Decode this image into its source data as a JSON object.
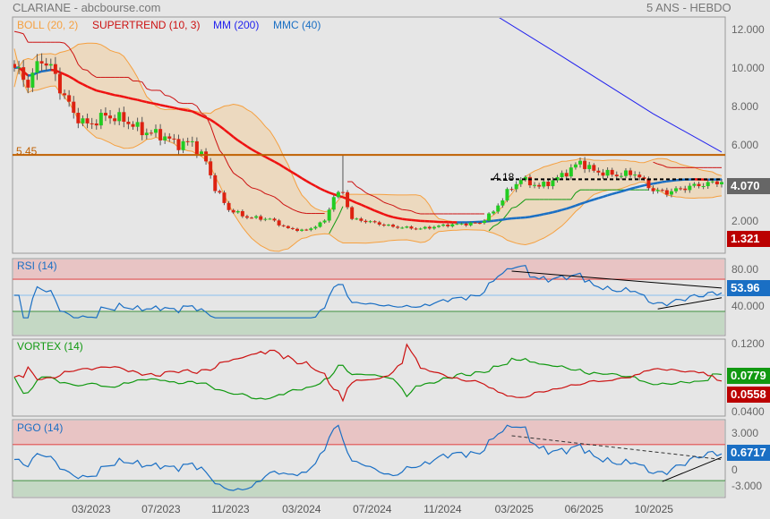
{
  "header": {
    "title": "CLARIANE - abcbourse.com",
    "period": "5 ANS - HEBDO"
  },
  "legend": {
    "boll": "BOLL (20, 2)",
    "supertrend": "SUPERTREND (10, 3)",
    "mm": "MM (200)",
    "mmc": "MMC (40)"
  },
  "colors": {
    "up": "#22cc22",
    "down": "#dd2211",
    "boll": "#f5a040",
    "boll_fill": "#ecd9bf",
    "supertrend_up": "#119911",
    "supertrend_down": "#cc1111",
    "mm": "#2222ee",
    "mmc_up": "#1a6fc4",
    "mmc_down": "#ee1111",
    "level": "#c06000"
  },
  "main": {
    "axis_labels": [
      "12.000",
      "10.000",
      "8.000",
      "6.000",
      "2.000"
    ],
    "level_label": "5.45",
    "dashed_label": "4.18",
    "last_price": "4.070",
    "low_tag": "1.321"
  },
  "rsi": {
    "title": "RSI (14)",
    "axis_labels": [
      "80.00",
      "40.000"
    ],
    "last": "53.96"
  },
  "vortex": {
    "title": "VORTEX (14)",
    "axis_labels": [
      "0.1200",
      "0.0400"
    ],
    "plus_last": "0.0779",
    "minus_last": "0.0558"
  },
  "pgo": {
    "title": "PGO (14)",
    "axis_labels": [
      "3.000",
      "0",
      "-3.000"
    ],
    "last": "0.6717"
  },
  "xaxis": {
    "labels": [
      "03/2023",
      "07/2023",
      "11/2023",
      "03/2024",
      "07/2024",
      "11/2024",
      "03/2025",
      "06/2025",
      "10/2025"
    ]
  },
  "chart_data": {
    "type": "candlestick",
    "title": "CLARIANE - 5 ANS - HEBDO",
    "weeks": 156,
    "price_anchors": [
      [
        0,
        10
      ],
      [
        3,
        9.2
      ],
      [
        6,
        10.5
      ],
      [
        8,
        10
      ],
      [
        10,
        9
      ],
      [
        13,
        7.6
      ],
      [
        16,
        7
      ],
      [
        20,
        7.5
      ],
      [
        24,
        7.3
      ],
      [
        28,
        6.7
      ],
      [
        32,
        6.5
      ],
      [
        36,
        6
      ],
      [
        39,
        6.1
      ],
      [
        42,
        5.1
      ],
      [
        44,
        3.7
      ],
      [
        47,
        2.6
      ],
      [
        51,
        2.2
      ],
      [
        56,
        2.1
      ],
      [
        60,
        1.6
      ],
      [
        64,
        1.5
      ],
      [
        68,
        2
      ],
      [
        70,
        3.3
      ],
      [
        72,
        3.5
      ],
      [
        74,
        2.1
      ],
      [
        77,
        2
      ],
      [
        83,
        1.7
      ],
      [
        89,
        1.6
      ],
      [
        95,
        1.8
      ],
      [
        102,
        1.9
      ],
      [
        105,
        2.5
      ],
      [
        108,
        3.5
      ],
      [
        111,
        4.2
      ],
      [
        115,
        3.8
      ],
      [
        118,
        4.1
      ],
      [
        122,
        4.7
      ],
      [
        124,
        5.1
      ],
      [
        127,
        4.6
      ],
      [
        132,
        4.4
      ],
      [
        136,
        4.5
      ],
      [
        140,
        3.6
      ],
      [
        143,
        3.5
      ],
      [
        148,
        3.8
      ],
      [
        155,
        4.07
      ]
    ],
    "mm200_anchors": [
      [
        101,
        13.4
      ],
      [
        120,
        10.6
      ],
      [
        140,
        7.6
      ],
      [
        155,
        5.6
      ]
    ],
    "levels": {
      "resistance": 5.45,
      "dashed": 4.18
    },
    "y_range": [
      1.3,
      13.4
    ],
    "xtick_weeks": [
      16.9,
      32.2,
      47.5,
      63,
      78.5,
      94,
      109.6,
      124.9,
      140.2
    ],
    "rsi_range": [
      20,
      100
    ],
    "rsi_zones": [
      70,
      30
    ],
    "vortex_range": [
      0.035,
      0.125
    ],
    "pgo_range": [
      -4.4,
      4.4
    ],
    "pgo_zones": [
      1.7,
      -2.4
    ],
    "rsi_trendlines": [
      [
        [
          109,
          80
        ],
        [
          155,
          59
        ]
      ],
      [
        [
          141,
          33
        ],
        [
          155,
          47
        ]
      ]
    ],
    "pgo_trendlines": [
      [
        [
          109,
          2.7
        ],
        [
          155,
          0
        ]
      ],
      [
        [
          142,
          -2.5
        ],
        [
          155,
          0.25
        ]
      ]
    ]
  }
}
